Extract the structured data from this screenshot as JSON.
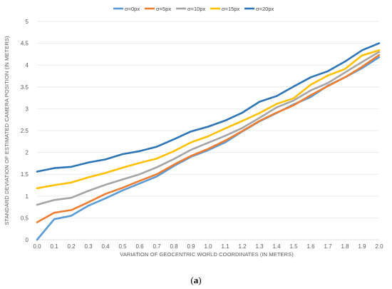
{
  "chart_data": {
    "type": "line",
    "title": "",
    "caption": "(a)",
    "xlabel": "VARIATION OF GEOCENTRIC WORLD COORDINATES (IN METERS)",
    "ylabel": "STANDARD DEVIATION OF ESTIMATED CAMERA POSITION (IN METERS)",
    "x": [
      "0.0",
      "0.1",
      "0.2",
      "0.3",
      "0.4",
      "0.5",
      "0.6",
      "0.7",
      "0.8",
      "0.9",
      "1.0",
      "1.1",
      "1.2",
      "1.3",
      "1.4",
      "1.5",
      "1.6",
      "1.7",
      "1.8",
      "1.9",
      "2.0"
    ],
    "yticks": [
      "0",
      "0.5",
      "1",
      "1.5",
      "2",
      "2.5",
      "3",
      "3.5",
      "4",
      "4.5",
      "5"
    ],
    "ylim": [
      0,
      5
    ],
    "grid": true,
    "legend_position": "top",
    "series": [
      {
        "name": "σ=0px",
        "color": "#5b9bd5",
        "values": [
          0.0,
          0.47,
          0.55,
          0.78,
          0.95,
          1.13,
          1.29,
          1.45,
          1.69,
          1.9,
          2.05,
          2.23,
          2.48,
          2.71,
          2.9,
          3.1,
          3.27,
          3.53,
          3.72,
          3.93,
          4.18
        ]
      },
      {
        "name": "σ=5px",
        "color": "#ed7d31",
        "values": [
          0.4,
          0.62,
          0.68,
          0.86,
          1.05,
          1.19,
          1.35,
          1.5,
          1.72,
          1.92,
          2.08,
          2.27,
          2.49,
          2.72,
          2.91,
          3.08,
          3.31,
          3.52,
          3.72,
          3.96,
          4.23
        ]
      },
      {
        "name": "σ=10px",
        "color": "#a5a5a5",
        "values": [
          0.8,
          0.91,
          0.96,
          1.12,
          1.26,
          1.38,
          1.5,
          1.66,
          1.85,
          2.06,
          2.22,
          2.38,
          2.56,
          2.79,
          3.03,
          3.19,
          3.42,
          3.59,
          3.83,
          4.07,
          4.3
        ]
      },
      {
        "name": "σ=15px",
        "color": "#ffc000",
        "values": [
          1.18,
          1.25,
          1.31,
          1.43,
          1.53,
          1.65,
          1.76,
          1.86,
          2.03,
          2.23,
          2.37,
          2.55,
          2.72,
          2.9,
          3.11,
          3.24,
          3.55,
          3.76,
          3.91,
          4.22,
          4.34
        ]
      },
      {
        "name": "σ=20px",
        "color": "#2e75b6",
        "values": [
          1.56,
          1.64,
          1.67,
          1.77,
          1.84,
          1.96,
          2.03,
          2.13,
          2.3,
          2.48,
          2.59,
          2.73,
          2.91,
          3.16,
          3.29,
          3.51,
          3.72,
          3.86,
          4.08,
          4.34,
          4.5
        ]
      }
    ]
  }
}
